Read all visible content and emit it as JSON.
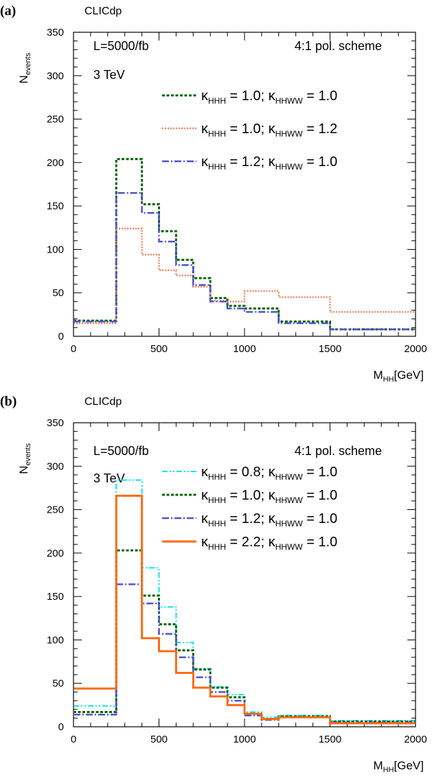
{
  "chart_data": [
    {
      "type": "step",
      "panel": "(a)",
      "collaboration": "CLICdp",
      "luminosity": "L=5000/fb",
      "energy": "3 TeV",
      "pol_scheme": "4:1 pol. scheme",
      "ylabel": {
        "main": "N",
        "sub": "events"
      },
      "xlabel": {
        "main": "M",
        "sub": "HH",
        "unit": "[GeV]"
      },
      "xlim": [
        0,
        2000
      ],
      "ylim": [
        0,
        350
      ],
      "xticks": [
        0,
        500,
        1000,
        1500,
        2000
      ],
      "yticks": [
        0,
        50,
        100,
        150,
        200,
        250,
        300,
        350
      ],
      "bin_edges": [
        0,
        250,
        400,
        500,
        600,
        700,
        800,
        900,
        1000,
        1200,
        1500,
        2000
      ],
      "series": [
        {
          "label": [
            "κ",
            "HHH",
            " = 1.0; ",
            "κ",
            "HHWW",
            " = 1.0"
          ],
          "color": "#006400",
          "dash": "4 2.5",
          "width": 3,
          "values": [
            18,
            204,
            152,
            121,
            88,
            67,
            44,
            35,
            32,
            17,
            8
          ]
        },
        {
          "label": [
            "κ",
            "HHH",
            " = 1.0; ",
            "κ",
            "HHWW",
            " = 1.2"
          ],
          "color": "#f08060",
          "dash": "2 2",
          "width": 2.5,
          "values": [
            15,
            124,
            94,
            76,
            70,
            57,
            41,
            40,
            52,
            45,
            28
          ]
        },
        {
          "label": [
            "κ",
            "HHH",
            " = 1.2; ",
            "κ",
            "HHWW",
            " = 1.0"
          ],
          "color": "#5050d0",
          "dash": "10 3 2 3",
          "width": 2.5,
          "values": [
            17,
            165,
            142,
            109,
            82,
            59,
            40,
            32,
            28,
            15,
            8
          ]
        }
      ]
    },
    {
      "type": "step",
      "panel": "(b)",
      "collaboration": "CLICdp",
      "luminosity": "L=5000/fb",
      "energy": "3 TeV",
      "pol_scheme": "4:1 pol. scheme",
      "ylabel": {
        "main": "N",
        "sub": "events"
      },
      "xlabel": {
        "main": "M",
        "sub": "HH",
        "unit": "[GeV]"
      },
      "xlim": [
        0,
        2000
      ],
      "ylim": [
        0,
        350
      ],
      "xticks": [
        0,
        500,
        1000,
        1500,
        2000
      ],
      "yticks": [
        0,
        50,
        100,
        150,
        200,
        250,
        300,
        350
      ],
      "bin_edges": [
        0,
        250,
        400,
        500,
        600,
        700,
        800,
        900,
        1000,
        1100,
        1200,
        1500,
        2000
      ],
      "series": [
        {
          "label": [
            "κ",
            "HHH",
            " = 0.8; ",
            "κ",
            "HHWW",
            " = 1.0"
          ],
          "color": "#00e5ee",
          "dash": "8 3 2 3 2 3",
          "width": 2,
          "values": [
            24,
            284,
            183,
            138,
            97,
            67,
            46,
            37,
            17,
            11,
            13,
            7
          ]
        },
        {
          "label": [
            "κ",
            "HHH",
            " = 1.0; ",
            "κ",
            "HHWW",
            " = 1.0"
          ],
          "color": "#006400",
          "dash": "4 2.5",
          "width": 3,
          "values": [
            17,
            203,
            151,
            118,
            88,
            66,
            45,
            34,
            15,
            9,
            12,
            6
          ]
        },
        {
          "label": [
            "κ",
            "HHH",
            " = 1.2; ",
            "κ",
            "HHWW",
            " = 1.0"
          ],
          "color": "#5050d0",
          "dash": "10 3 2 3",
          "width": 2.5,
          "values": [
            14,
            164,
            142,
            107,
            80,
            57,
            40,
            30,
            13,
            8,
            11,
            5
          ]
        },
        {
          "label": [
            "κ",
            "HHH",
            " = 2.2; ",
            "κ",
            "HHWW",
            " = 1.0"
          ],
          "color": "#ff6a10",
          "dash": "",
          "width": 3,
          "values": [
            44,
            266,
            102,
            87,
            62,
            45,
            35,
            25,
            15,
            9,
            11,
            4
          ]
        }
      ]
    }
  ]
}
